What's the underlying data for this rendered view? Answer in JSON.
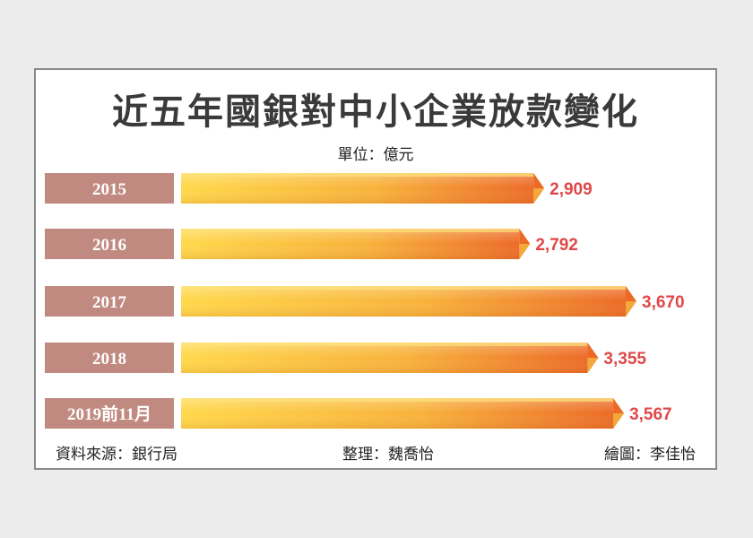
{
  "title": "近五年國銀對中小企業放款變化",
  "unit": "單位：億元",
  "footer": {
    "source": "資料來源：銀行局",
    "editor": "整理：魏喬怡",
    "illustrator": "繪圖：李佳怡"
  },
  "colors": {
    "label_bg": "#c08a80",
    "value_text": "#e04848",
    "bar_light": "#ffd84a",
    "bar_mid": "#f8b23a",
    "bar_dark": "#ec6a26",
    "bar_top": "#fde27a",
    "bar_bottom": "#f3a83a"
  },
  "chart_data": {
    "type": "bar",
    "orientation": "horizontal",
    "categories": [
      "2015",
      "2016",
      "2017",
      "2018",
      "2019前11月"
    ],
    "values": [
      2909,
      2792,
      3670,
      3355,
      3567
    ],
    "value_labels": [
      "2,909",
      "2,792",
      "3,670",
      "3,355",
      "3,567"
    ],
    "title": "近五年國銀對中小企業放款變化",
    "unit": "億元"
  }
}
